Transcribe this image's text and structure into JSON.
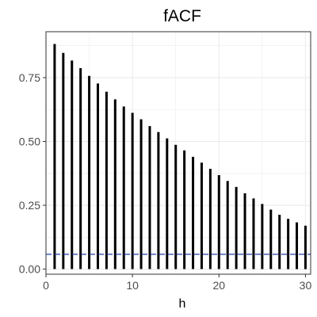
{
  "chart_data": {
    "type": "bar",
    "title": "fACF",
    "xlabel": "h",
    "ylabel": "",
    "xlim": [
      0,
      30.6
    ],
    "ylim": [
      -0.02,
      0.93
    ],
    "x_ticks": [
      0,
      10,
      20,
      30
    ],
    "y_ticks": [
      0.0,
      0.25,
      0.5,
      0.75
    ],
    "x_tick_labels": [
      "0",
      "10",
      "20",
      "30"
    ],
    "y_tick_labels": [
      "0.00",
      "0.25",
      "0.50",
      "0.75"
    ],
    "grid": true,
    "legend": "none",
    "series": [
      {
        "x": [
          1,
          2,
          3,
          4,
          5,
          6,
          7,
          8,
          9,
          10,
          11,
          12,
          13,
          14,
          15,
          16,
          17,
          18,
          19,
          20,
          21,
          22,
          23,
          24,
          25,
          26,
          27,
          28,
          29,
          30
        ],
        "values": [
          0.882,
          0.847,
          0.817,
          0.787,
          0.757,
          0.727,
          0.695,
          0.665,
          0.637,
          0.612,
          0.587,
          0.56,
          0.537,
          0.512,
          0.487,
          0.465,
          0.44,
          0.417,
          0.393,
          0.368,
          0.345,
          0.322,
          0.297,
          0.277,
          0.255,
          0.233,
          0.213,
          0.197,
          0.183,
          0.17
        ],
        "color": "#000000"
      }
    ],
    "reference_line": {
      "y": 0.058,
      "style": "dashed",
      "color": "#1f3fa8"
    },
    "panel_background": "#ffffff",
    "grid_color": "#ebebeb",
    "panel_border_color": "#333333"
  }
}
